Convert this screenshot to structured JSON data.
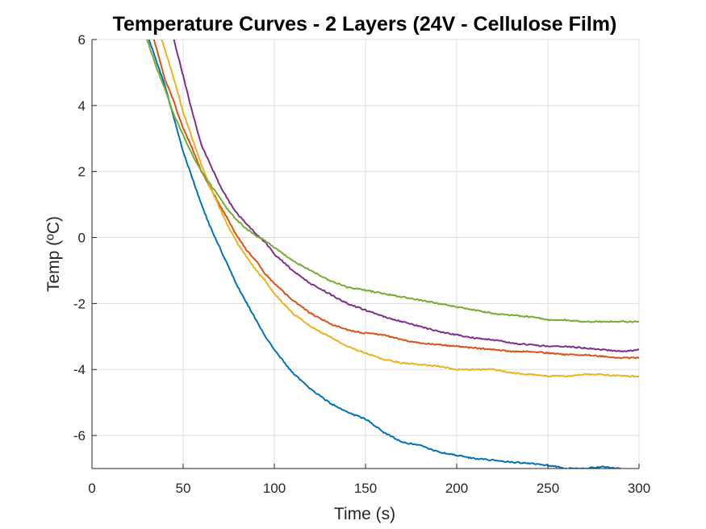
{
  "chart_data": {
    "type": "line",
    "title": "Temperature Curves - 2 Layers (24V - Cellulose Film)",
    "xlabel": "Time (s)",
    "ylabel": "Temp (ºC)",
    "xlim": [
      0,
      300
    ],
    "ylim": [
      -7,
      6
    ],
    "xticks": [
      0,
      50,
      100,
      150,
      200,
      250,
      300
    ],
    "yticks": [
      -6,
      -4,
      -2,
      0,
      2,
      4,
      6
    ],
    "xtick_labels": [
      "0",
      "50",
      "100",
      "150",
      "200",
      "250",
      "300"
    ],
    "ytick_labels": [
      "-6",
      "-4",
      "-2",
      "0",
      "2",
      "4",
      "6"
    ],
    "grid": true,
    "series": [
      {
        "color": "#0072BD",
        "x": [
          30,
          35,
          40,
          45,
          50,
          55,
          60,
          65,
          70,
          75,
          80,
          85,
          90,
          95,
          100,
          110,
          120,
          130,
          140,
          150,
          160,
          170,
          180,
          190,
          200,
          210,
          220,
          230,
          240,
          250,
          260,
          270,
          280,
          290,
          295
        ],
        "y": [
          6.2,
          5.4,
          4.6,
          3.6,
          2.6,
          1.8,
          1.0,
          0.3,
          -0.3,
          -0.9,
          -1.5,
          -2.0,
          -2.5,
          -3.0,
          -3.4,
          -4.1,
          -4.6,
          -5.0,
          -5.3,
          -5.5,
          -5.9,
          -6.2,
          -6.3,
          -6.5,
          -6.6,
          -6.7,
          -6.75,
          -6.8,
          -6.85,
          -6.9,
          -7.0,
          -7.0,
          -6.95,
          -7.0,
          -7.05
        ]
      },
      {
        "color": "#D95319",
        "x": [
          33,
          40,
          45,
          50,
          55,
          60,
          65,
          70,
          75,
          80,
          85,
          90,
          95,
          100,
          110,
          120,
          130,
          140,
          150,
          160,
          170,
          180,
          190,
          200,
          210,
          220,
          230,
          240,
          250,
          260,
          270,
          280,
          290,
          300
        ],
        "y": [
          6.2,
          4.8,
          4.1,
          3.3,
          2.7,
          2.0,
          1.5,
          1.0,
          0.5,
          0.0,
          -0.4,
          -0.7,
          -1.1,
          -1.4,
          -1.9,
          -2.3,
          -2.6,
          -2.8,
          -2.9,
          -2.95,
          -3.1,
          -3.2,
          -3.25,
          -3.3,
          -3.35,
          -3.4,
          -3.45,
          -3.45,
          -3.5,
          -3.55,
          -3.55,
          -3.6,
          -3.65,
          -3.65
        ]
      },
      {
        "color": "#EDB120",
        "x": [
          37,
          40,
          45,
          50,
          55,
          60,
          65,
          70,
          75,
          80,
          85,
          90,
          95,
          100,
          110,
          120,
          130,
          140,
          150,
          160,
          170,
          180,
          190,
          200,
          210,
          220,
          230,
          240,
          250,
          260,
          270,
          280,
          290,
          300
        ],
        "y": [
          6.2,
          5.7,
          4.8,
          3.8,
          3.0,
          2.2,
          1.5,
          0.9,
          0.3,
          -0.2,
          -0.6,
          -1.0,
          -1.3,
          -1.7,
          -2.3,
          -2.7,
          -3.0,
          -3.3,
          -3.5,
          -3.7,
          -3.8,
          -3.85,
          -3.9,
          -4.0,
          -4.0,
          -4.0,
          -4.1,
          -4.15,
          -4.2,
          -4.2,
          -4.15,
          -4.15,
          -4.2,
          -4.2
        ]
      },
      {
        "color": "#7E2F8E",
        "x": [
          44,
          50,
          55,
          60,
          65,
          70,
          75,
          80,
          85,
          90,
          95,
          100,
          110,
          120,
          130,
          140,
          150,
          160,
          170,
          180,
          190,
          200,
          210,
          220,
          230,
          240,
          250,
          260,
          270,
          280,
          290,
          300
        ],
        "y": [
          6.2,
          4.9,
          3.8,
          2.8,
          2.2,
          1.6,
          1.1,
          0.7,
          0.4,
          0.1,
          -0.15,
          -0.5,
          -1.0,
          -1.4,
          -1.7,
          -2.0,
          -2.2,
          -2.4,
          -2.55,
          -2.7,
          -2.85,
          -2.95,
          -3.05,
          -3.1,
          -3.2,
          -3.25,
          -3.3,
          -3.3,
          -3.35,
          -3.4,
          -3.45,
          -3.4
        ]
      },
      {
        "color": "#77AC30",
        "x": [
          29,
          35,
          40,
          45,
          50,
          55,
          60,
          65,
          70,
          75,
          80,
          85,
          90,
          95,
          100,
          110,
          120,
          130,
          140,
          150,
          160,
          170,
          180,
          190,
          200,
          210,
          220,
          230,
          240,
          250,
          260,
          270,
          280,
          290,
          300
        ],
        "y": [
          6.2,
          5.2,
          4.5,
          3.7,
          3.1,
          2.5,
          2.0,
          1.6,
          1.2,
          0.8,
          0.5,
          0.25,
          0.05,
          -0.1,
          -0.3,
          -0.7,
          -1.0,
          -1.3,
          -1.5,
          -1.6,
          -1.7,
          -1.8,
          -1.9,
          -2.0,
          -2.1,
          -2.2,
          -2.3,
          -2.35,
          -2.4,
          -2.5,
          -2.5,
          -2.55,
          -2.55,
          -2.55,
          -2.55
        ]
      }
    ]
  }
}
